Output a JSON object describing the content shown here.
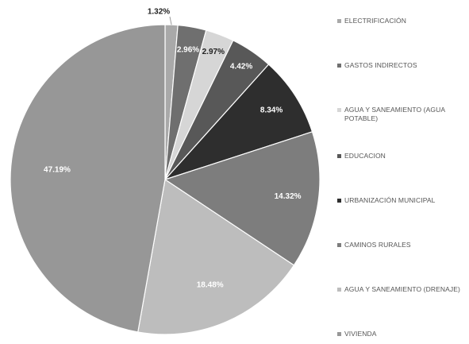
{
  "chart_data": {
    "type": "pie",
    "legend_position": "right",
    "slices": [
      {
        "label": "ELECTRIFICACIÓN",
        "value": 1.32,
        "value_label": "1.32%",
        "color": "#a9a9a9"
      },
      {
        "label": "GASTOS INDIRECTOS",
        "value": 2.96,
        "value_label": "2.96%",
        "color": "#6f6f6f"
      },
      {
        "label": "AGUA Y SANEAMIENTO (AGUA POTABLE)",
        "value": 2.97,
        "value_label": "2.97%",
        "color": "#d6d6d6"
      },
      {
        "label": "EDUCACION",
        "value": 4.42,
        "value_label": "4.42%",
        "color": "#585858"
      },
      {
        "label": "URBANIZACIÓN MUNICIPAL",
        "value": 8.34,
        "value_label": "8.34%",
        "color": "#2e2e2e"
      },
      {
        "label": "CAMINOS RURALES",
        "value": 14.32,
        "value_label": "14.32%",
        "color": "#7d7d7d"
      },
      {
        "label": "AGUA Y SANEAMIENTO (DRENAJE)",
        "value": 18.48,
        "value_label": "18.48%",
        "color": "#bdbdbd"
      },
      {
        "label": "VIVIENDA",
        "value": 47.19,
        "value_label": "47.19%",
        "color": "#979797"
      }
    ]
  }
}
